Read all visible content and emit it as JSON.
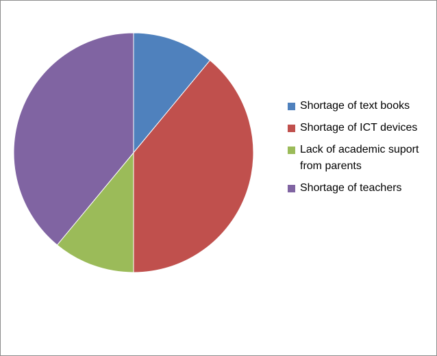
{
  "chart_data": {
    "type": "pie",
    "title": "",
    "categories": [
      "Shortage of text books",
      "Shortage of ICT devices",
      "Lack of academic suport from parents",
      "Shortage of teachers"
    ],
    "values": [
      11,
      39,
      11,
      39
    ],
    "colors": [
      "#4F81BD",
      "#C0504D",
      "#9BBB59",
      "#8064A2"
    ],
    "legend_position": "right",
    "start_angle_deg": 0,
    "direction": "clockwise"
  },
  "legend": {
    "items": [
      {
        "label": "Shortage of text books",
        "color": "#4F81BD"
      },
      {
        "label": "Shortage of ICT devices",
        "color": "#C0504D"
      },
      {
        "label": "Lack of academic suport from parents",
        "color": "#9BBB59"
      },
      {
        "label": "Shortage of teachers",
        "color": "#8064A2"
      }
    ]
  }
}
